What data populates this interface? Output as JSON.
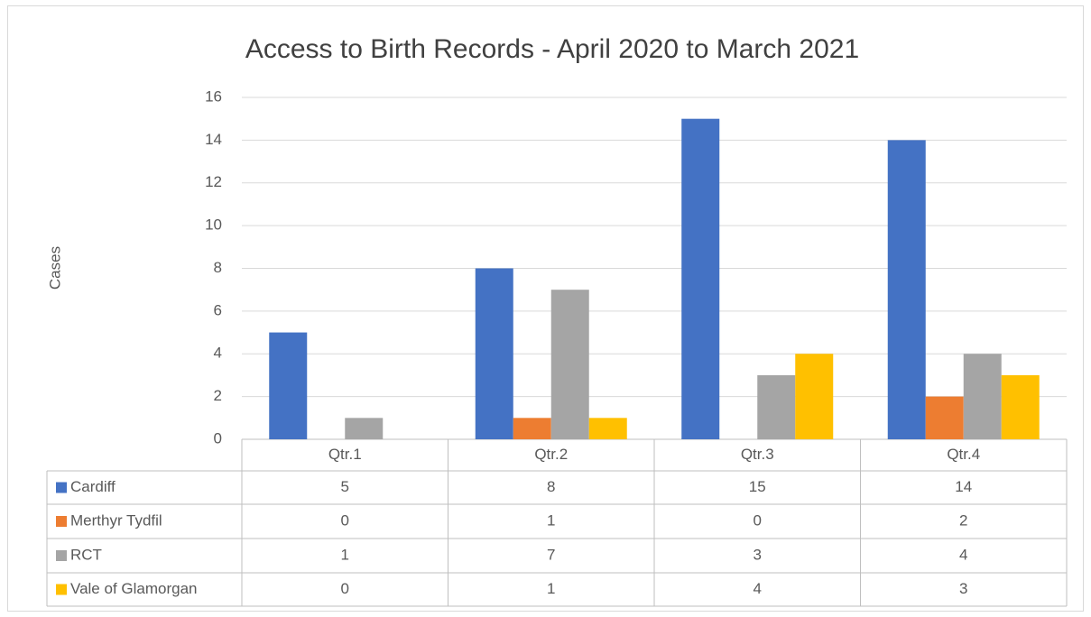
{
  "chart_data": {
    "type": "bar",
    "title": "Access to Birth Records - April 2020 to March 2021",
    "y_label": "Cases",
    "categories": [
      "Qtr.1",
      "Qtr.2",
      "Qtr.3",
      "Qtr.4"
    ],
    "series": [
      {
        "name": "Cardiff",
        "color": "#4472c4",
        "values": [
          5,
          8,
          15,
          14
        ]
      },
      {
        "name": "Merthyr Tydfil",
        "color": "#ed7d31",
        "values": [
          0,
          1,
          0,
          2
        ]
      },
      {
        "name": "RCT",
        "color": "#a5a5a5",
        "values": [
          1,
          7,
          3,
          4
        ]
      },
      {
        "name": "Vale of Glamorgan",
        "color": "#ffc000",
        "values": [
          0,
          1,
          4,
          3
        ]
      }
    ],
    "ylim": [
      0,
      16
    ],
    "yticks": [
      0,
      2,
      4,
      6,
      8,
      10,
      12,
      14,
      16
    ],
    "grid": true,
    "legend": "table"
  }
}
